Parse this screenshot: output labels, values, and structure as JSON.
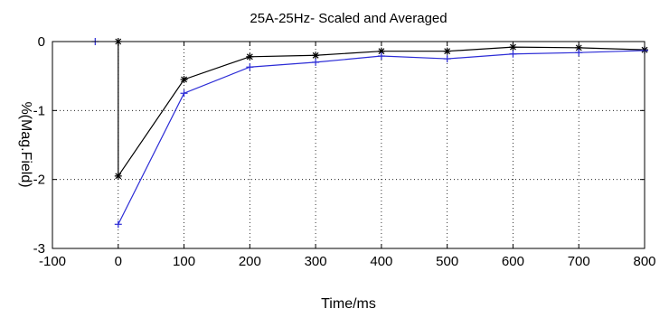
{
  "chart_data": {
    "type": "line",
    "title": "25A-25Hz- Scaled and Averaged",
    "xlabel": "Time/ms",
    "ylabel": "%(Mag.Field)",
    "xlim": [
      -100,
      800
    ],
    "ylim": [
      -3,
      0
    ],
    "xticks": [
      -100,
      0,
      100,
      200,
      300,
      400,
      500,
      600,
      700,
      800
    ],
    "yticks": [
      0,
      -1,
      -2,
      -3
    ],
    "grid": true,
    "series": [
      {
        "color": "#000000",
        "marker": "asterisk",
        "x": [
          0,
          0,
          100,
          200,
          300,
          400,
          500,
          600,
          700,
          800
        ],
        "y": [
          0,
          -1.95,
          -0.55,
          -0.22,
          -0.2,
          -0.14,
          -0.14,
          -0.08,
          -0.09,
          -0.12
        ]
      },
      {
        "color": "#2b2bd6",
        "marker": "plus",
        "x": [
          0,
          100,
          200,
          300,
          400,
          500,
          600,
          700,
          800
        ],
        "y": [
          -2.65,
          -0.75,
          -0.37,
          -0.3,
          -0.21,
          -0.25,
          -0.18,
          -0.16,
          -0.13
        ]
      },
      {
        "color": "#2b2bd6",
        "marker": "plus",
        "x": [
          -35
        ],
        "y": [
          0
        ]
      }
    ]
  }
}
